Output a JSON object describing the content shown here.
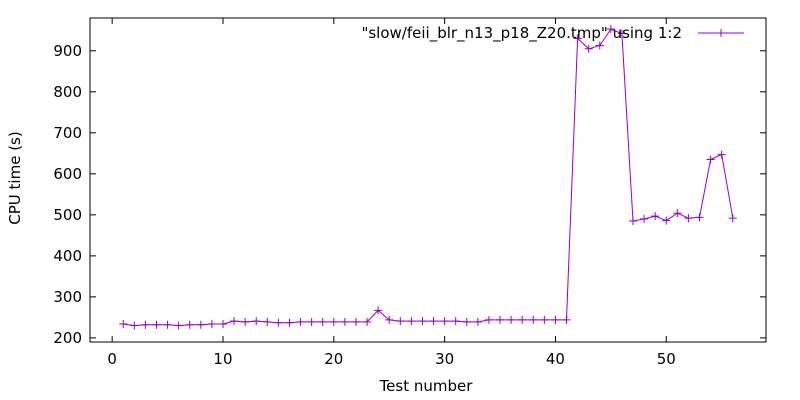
{
  "chart_data": {
    "type": "line",
    "title": "",
    "xlabel": "Test number",
    "ylabel": "CPU time (s)",
    "xlim": [
      -2,
      59
    ],
    "ylim": [
      190,
      980
    ],
    "xticks": [
      0,
      10,
      20,
      30,
      40,
      50
    ],
    "yticks": [
      200,
      300,
      400,
      500,
      600,
      700,
      800,
      900
    ],
    "grid": false,
    "legend_position": "top-right",
    "series": [
      {
        "name": "\"slow/feii_blr_n13_p18_Z20.tmp\" using 1:2",
        "color": "#9400d3",
        "marker": "plus",
        "x": [
          1,
          2,
          3,
          4,
          5,
          6,
          7,
          8,
          9,
          10,
          11,
          12,
          13,
          14,
          15,
          16,
          17,
          18,
          19,
          20,
          21,
          22,
          23,
          24,
          25,
          26,
          27,
          28,
          29,
          30,
          31,
          32,
          33,
          34,
          35,
          36,
          37,
          38,
          39,
          40,
          41,
          42,
          43,
          44,
          45,
          46,
          47,
          48,
          49,
          50,
          51,
          52,
          53,
          54,
          55,
          56
        ],
        "y": [
          234,
          230,
          232,
          232,
          232,
          230,
          232,
          232,
          234,
          234,
          241,
          239,
          241,
          239,
          237,
          237,
          239,
          239,
          239,
          239,
          239,
          239,
          239,
          267,
          244,
          241,
          241,
          241,
          241,
          241,
          241,
          239,
          239,
          244,
          244,
          244,
          244,
          244,
          244,
          244,
          244,
          930,
          905,
          913,
          953,
          942,
          485,
          490,
          497,
          486,
          504,
          492,
          494,
          635,
          647,
          492
        ]
      }
    ]
  }
}
